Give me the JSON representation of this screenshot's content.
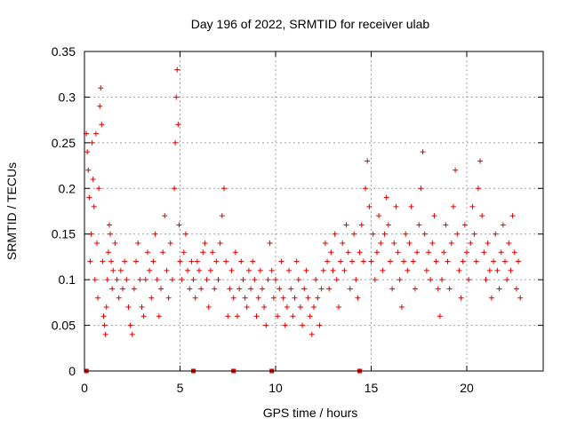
{
  "chart_data": {
    "type": "scatter",
    "title": "Day 196 of 2022, SRMTID for receiver ulab",
    "xlabel": "GPS time / hours",
    "ylabel": "SRMTID / TECUs",
    "xlim": [
      0,
      24
    ],
    "ylim": [
      0,
      0.35
    ],
    "x_ticks": [
      0,
      5,
      10,
      15,
      20
    ],
    "x_tick_labels": [
      "0",
      "5",
      "10",
      "15",
      "20"
    ],
    "y_ticks": [
      0,
      0.05,
      0.1,
      0.15,
      0.2,
      0.25,
      0.3,
      0.35
    ],
    "y_tick_labels": [
      "0",
      "0.05",
      "0.1",
      "0.15",
      "0.2",
      "0.25",
      "0.3",
      "0.35"
    ],
    "grid": true,
    "marker": "+",
    "color": "#e00000",
    "zero_markers_x": [
      0.1,
      5.7,
      7.8,
      9.8,
      14.4
    ],
    "series": [
      {
        "name": "SRMTID",
        "points": [
          [
            0.1,
            0.26
          ],
          [
            0.15,
            0.24
          ],
          [
            0.2,
            0.22
          ],
          [
            0.25,
            0.19
          ],
          [
            0.3,
            0.12
          ],
          [
            0.35,
            0.15
          ],
          [
            0.4,
            0.25
          ],
          [
            0.45,
            0.21
          ],
          [
            0.5,
            0.18
          ],
          [
            0.55,
            0.1
          ],
          [
            0.6,
            0.26
          ],
          [
            0.65,
            0.14
          ],
          [
            0.7,
            0.08
          ],
          [
            0.75,
            0.2
          ],
          [
            0.8,
            0.29
          ],
          [
            0.85,
            0.31
          ],
          [
            0.9,
            0.27
          ],
          [
            0.95,
            0.12
          ],
          [
            1.0,
            0.06
          ],
          [
            1.05,
            0.05
          ],
          [
            1.1,
            0.04
          ],
          [
            1.15,
            0.07
          ],
          [
            1.2,
            0.1
          ],
          [
            1.25,
            0.13
          ],
          [
            1.3,
            0.16
          ],
          [
            1.35,
            0.15
          ],
          [
            1.4,
            0.12
          ],
          [
            1.45,
            0.09
          ],
          [
            1.5,
            0.11
          ],
          [
            1.6,
            0.14
          ],
          [
            1.7,
            0.1
          ],
          [
            1.8,
            0.08
          ],
          [
            1.9,
            0.11
          ],
          [
            2.0,
            0.09
          ],
          [
            2.1,
            0.12
          ],
          [
            2.2,
            0.1
          ],
          [
            2.3,
            0.07
          ],
          [
            2.4,
            0.05
          ],
          [
            2.5,
            0.04
          ],
          [
            2.6,
            0.09
          ],
          [
            2.7,
            0.12
          ],
          [
            2.8,
            0.14
          ],
          [
            2.9,
            0.1
          ],
          [
            3.0,
            0.07
          ],
          [
            3.1,
            0.06
          ],
          [
            3.2,
            0.1
          ],
          [
            3.3,
            0.13
          ],
          [
            3.4,
            0.11
          ],
          [
            3.5,
            0.08
          ],
          [
            3.6,
            0.12
          ],
          [
            3.7,
            0.15
          ],
          [
            3.8,
            0.1
          ],
          [
            3.9,
            0.06
          ],
          [
            4.0,
            0.09
          ],
          [
            4.1,
            0.13
          ],
          [
            4.2,
            0.17
          ],
          [
            4.3,
            0.11
          ],
          [
            4.4,
            0.08
          ],
          [
            4.5,
            0.14
          ],
          [
            4.6,
            0.1
          ],
          [
            4.7,
            0.2
          ],
          [
            4.75,
            0.25
          ],
          [
            4.8,
            0.3
          ],
          [
            4.85,
            0.33
          ],
          [
            4.9,
            0.27
          ],
          [
            4.95,
            0.16
          ],
          [
            5.0,
            0.12
          ],
          [
            5.1,
            0.1
          ],
          [
            5.2,
            0.13
          ],
          [
            5.3,
            0.15
          ],
          [
            5.4,
            0.11
          ],
          [
            5.5,
            0.09
          ],
          [
            5.6,
            0.12
          ],
          [
            5.7,
            0.1
          ],
          [
            5.8,
            0.08
          ],
          [
            5.9,
            0.12
          ],
          [
            6.0,
            0.11
          ],
          [
            6.1,
            0.09
          ],
          [
            6.2,
            0.13
          ],
          [
            6.3,
            0.14
          ],
          [
            6.4,
            0.1
          ],
          [
            6.5,
            0.07
          ],
          [
            6.6,
            0.11
          ],
          [
            6.7,
            0.13
          ],
          [
            6.8,
            0.09
          ],
          [
            6.9,
            0.12
          ],
          [
            7.0,
            0.1
          ],
          [
            7.1,
            0.14
          ],
          [
            7.2,
            0.17
          ],
          [
            7.3,
            0.2
          ],
          [
            7.4,
            0.12
          ],
          [
            7.5,
            0.06
          ],
          [
            7.6,
            0.09
          ],
          [
            7.7,
            0.11
          ],
          [
            7.8,
            0.08
          ],
          [
            7.9,
            0.13
          ],
          [
            8.0,
            0.06
          ],
          [
            8.1,
            0.09
          ],
          [
            8.2,
            0.12
          ],
          [
            8.3,
            0.1
          ],
          [
            8.4,
            0.08
          ],
          [
            8.5,
            0.07
          ],
          [
            8.6,
            0.11
          ],
          [
            8.7,
            0.09
          ],
          [
            8.8,
            0.12
          ],
          [
            8.9,
            0.1
          ],
          [
            9.0,
            0.06
          ],
          [
            9.1,
            0.08
          ],
          [
            9.2,
            0.11
          ],
          [
            9.3,
            0.09
          ],
          [
            9.4,
            0.07
          ],
          [
            9.5,
            0.05
          ],
          [
            9.6,
            0.1
          ],
          [
            9.7,
            0.14
          ],
          [
            9.8,
            0.11
          ],
          [
            9.9,
            0.08
          ],
          [
            10.0,
            0.1
          ],
          [
            10.1,
            0.06
          ],
          [
            10.2,
            0.09
          ],
          [
            10.3,
            0.12
          ],
          [
            10.4,
            0.08
          ],
          [
            10.5,
            0.05
          ],
          [
            10.6,
            0.07
          ],
          [
            10.7,
            0.11
          ],
          [
            10.8,
            0.09
          ],
          [
            10.9,
            0.06
          ],
          [
            11.0,
            0.08
          ],
          [
            11.1,
            0.12
          ],
          [
            11.2,
            0.1
          ],
          [
            11.3,
            0.07
          ],
          [
            11.4,
            0.05
          ],
          [
            11.5,
            0.09
          ],
          [
            11.6,
            0.11
          ],
          [
            11.7,
            0.08
          ],
          [
            11.8,
            0.06
          ],
          [
            11.9,
            0.04
          ],
          [
            12.0,
            0.07
          ],
          [
            12.1,
            0.1
          ],
          [
            12.2,
            0.08
          ],
          [
            12.3,
            0.05
          ],
          [
            12.4,
            0.09
          ],
          [
            12.5,
            0.11
          ],
          [
            12.6,
            0.14
          ],
          [
            12.7,
            0.12
          ],
          [
            12.8,
            0.09
          ],
          [
            12.9,
            0.13
          ],
          [
            13.0,
            0.11
          ],
          [
            13.1,
            0.15
          ],
          [
            13.2,
            0.1
          ],
          [
            13.3,
            0.07
          ],
          [
            13.4,
            0.12
          ],
          [
            13.5,
            0.14
          ],
          [
            13.6,
            0.11
          ],
          [
            13.7,
            0.16
          ],
          [
            13.8,
            0.13
          ],
          [
            13.9,
            0.09
          ],
          [
            14.0,
            0.12
          ],
          [
            14.1,
            0.15
          ],
          [
            14.2,
            0.1
          ],
          [
            14.3,
            0.08
          ],
          [
            14.4,
            0.13
          ],
          [
            14.5,
            0.16
          ],
          [
            14.6,
            0.12
          ],
          [
            14.7,
            0.2
          ],
          [
            14.8,
            0.23
          ],
          [
            14.9,
            0.18
          ],
          [
            15.0,
            0.12
          ],
          [
            15.1,
            0.15
          ],
          [
            15.2,
            0.1
          ],
          [
            15.3,
            0.13
          ],
          [
            15.4,
            0.17
          ],
          [
            15.5,
            0.14
          ],
          [
            15.6,
            0.11
          ],
          [
            15.7,
            0.15
          ],
          [
            15.8,
            0.19
          ],
          [
            15.9,
            0.16
          ],
          [
            16.0,
            0.12
          ],
          [
            16.1,
            0.09
          ],
          [
            16.2,
            0.14
          ],
          [
            16.3,
            0.18
          ],
          [
            16.4,
            0.13
          ],
          [
            16.5,
            0.1
          ],
          [
            16.6,
            0.07
          ],
          [
            16.7,
            0.12
          ],
          [
            16.8,
            0.15
          ],
          [
            16.9,
            0.11
          ],
          [
            17.0,
            0.14
          ],
          [
            17.1,
            0.18
          ],
          [
            17.2,
            0.12
          ],
          [
            17.3,
            0.09
          ],
          [
            17.4,
            0.13
          ],
          [
            17.5,
            0.16
          ],
          [
            17.6,
            0.2
          ],
          [
            17.7,
            0.24
          ],
          [
            17.8,
            0.15
          ],
          [
            17.9,
            0.11
          ],
          [
            18.0,
            0.13
          ],
          [
            18.1,
            0.1
          ],
          [
            18.2,
            0.14
          ],
          [
            18.3,
            0.17
          ],
          [
            18.4,
            0.12
          ],
          [
            18.5,
            0.09
          ],
          [
            18.6,
            0.06
          ],
          [
            18.7,
            0.1
          ],
          [
            18.8,
            0.13
          ],
          [
            18.9,
            0.16
          ],
          [
            19.0,
            0.12
          ],
          [
            19.1,
            0.09
          ],
          [
            19.2,
            0.14
          ],
          [
            19.3,
            0.18
          ],
          [
            19.4,
            0.22
          ],
          [
            19.5,
            0.15
          ],
          [
            19.6,
            0.11
          ],
          [
            19.7,
            0.08
          ],
          [
            19.8,
            0.12
          ],
          [
            19.9,
            0.16
          ],
          [
            20.0,
            0.13
          ],
          [
            20.1,
            0.1
          ],
          [
            20.2,
            0.14
          ],
          [
            20.3,
            0.18
          ],
          [
            20.4,
            0.15
          ],
          [
            20.5,
            0.12
          ],
          [
            20.6,
            0.2
          ],
          [
            20.7,
            0.23
          ],
          [
            20.8,
            0.17
          ],
          [
            20.9,
            0.13
          ],
          [
            21.0,
            0.1
          ],
          [
            21.1,
            0.14
          ],
          [
            21.2,
            0.11
          ],
          [
            21.3,
            0.08
          ],
          [
            21.4,
            0.12
          ],
          [
            21.5,
            0.15
          ],
          [
            21.6,
            0.11
          ],
          [
            21.7,
            0.09
          ],
          [
            21.8,
            0.13
          ],
          [
            21.9,
            0.16
          ],
          [
            22.0,
            0.12
          ],
          [
            22.1,
            0.1
          ],
          [
            22.2,
            0.14
          ],
          [
            22.3,
            0.11
          ],
          [
            22.4,
            0.17
          ],
          [
            22.5,
            0.13
          ],
          [
            22.6,
            0.09
          ],
          [
            22.7,
            0.12
          ],
          [
            22.8,
            0.08
          ]
        ]
      }
    ]
  }
}
